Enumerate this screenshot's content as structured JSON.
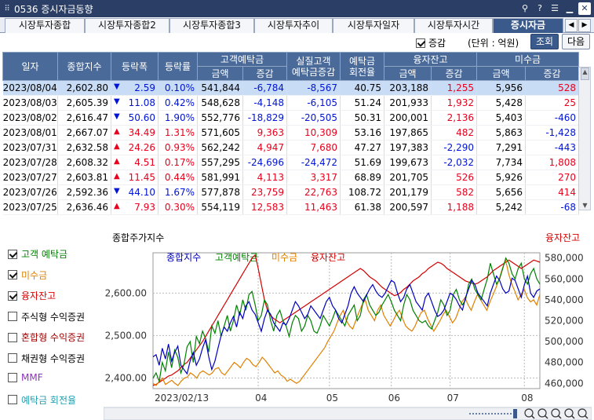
{
  "window": {
    "title": "0536 증시자금동향",
    "controls": [
      "pin-icon",
      "help-icon",
      "menu-icon",
      "minimize-icon",
      "close-icon"
    ]
  },
  "tabs": [
    {
      "label": "시장투자종합"
    },
    {
      "label": "시장투자종합2"
    },
    {
      "label": "시장투자종합3"
    },
    {
      "label": "시장투자추이"
    },
    {
      "label": "시장투자일자"
    },
    {
      "label": "시장투자시간"
    },
    {
      "label": "증시자금",
      "active": true
    }
  ],
  "toolbar": {
    "change_label": "증감",
    "change_checked": true,
    "unit_label": "(단위 : 억원)",
    "query_label": "조회",
    "next_label": "다음"
  },
  "table": {
    "headers": {
      "date": "일자",
      "kospi": "종합지수",
      "change": "등락폭",
      "rate": "등락률",
      "deposit": "고객예탁금",
      "real_deposit": "실질고객\n예탁금증감",
      "turnover": "예탁금\n회전율",
      "margin": "융자잔고",
      "unpaid": "미수금",
      "amount": "금액",
      "delta": "증감"
    },
    "rows": [
      {
        "date": "2023/08/04",
        "kospi": "2,602.80",
        "dir": "down",
        "change": "2.59",
        "rate": "0.10%",
        "dep_amt": "541,844",
        "dep_chg": "-6,784",
        "real": "-8,567",
        "turn": "40.75",
        "mar_amt": "203,188",
        "mar_chg": "1,255",
        "unp_amt": "5,956",
        "unp_chg": "528",
        "selected": true
      },
      {
        "date": "2023/08/03",
        "kospi": "2,605.39",
        "dir": "down",
        "change": "11.08",
        "rate": "0.42%",
        "dep_amt": "548,628",
        "dep_chg": "-4,148",
        "real": "-6,105",
        "turn": "51.24",
        "mar_amt": "201,933",
        "mar_chg": "1,932",
        "unp_amt": "5,428",
        "unp_chg": "25"
      },
      {
        "date": "2023/08/02",
        "kospi": "2,616.47",
        "dir": "down",
        "change": "50.60",
        "rate": "1.90%",
        "dep_amt": "552,776",
        "dep_chg": "-18,829",
        "real": "-20,505",
        "turn": "50.31",
        "mar_amt": "200,001",
        "mar_chg": "2,136",
        "unp_amt": "5,403",
        "unp_chg": "-460"
      },
      {
        "date": "2023/08/01",
        "kospi": "2,667.07",
        "dir": "up",
        "change": "34.49",
        "rate": "1.31%",
        "dep_amt": "571,605",
        "dep_chg": "9,363",
        "real": "10,309",
        "turn": "53.16",
        "mar_amt": "197,865",
        "mar_chg": "482",
        "unp_amt": "5,863",
        "unp_chg": "-1,428"
      },
      {
        "date": "2023/07/31",
        "kospi": "2,632.58",
        "dir": "up",
        "change": "24.26",
        "rate": "0.93%",
        "dep_amt": "562,242",
        "dep_chg": "4,947",
        "real": "7,680",
        "turn": "47.27",
        "mar_amt": "197,383",
        "mar_chg": "-2,290",
        "unp_amt": "7,291",
        "unp_chg": "-443"
      },
      {
        "date": "2023/07/28",
        "kospi": "2,608.32",
        "dir": "up",
        "change": "4.51",
        "rate": "0.17%",
        "dep_amt": "557,295",
        "dep_chg": "-24,696",
        "real": "-24,472",
        "turn": "51.69",
        "mar_amt": "199,673",
        "mar_chg": "-2,032",
        "unp_amt": "7,734",
        "unp_chg": "1,808"
      },
      {
        "date": "2023/07/27",
        "kospi": "2,603.81",
        "dir": "up",
        "change": "11.45",
        "rate": "0.44%",
        "dep_amt": "581,991",
        "dep_chg": "4,113",
        "real": "3,317",
        "turn": "68.89",
        "mar_amt": "201,705",
        "mar_chg": "526",
        "unp_amt": "5,926",
        "unp_chg": "270"
      },
      {
        "date": "2023/07/26",
        "kospi": "2,592.36",
        "dir": "down",
        "change": "44.10",
        "rate": "1.67%",
        "dep_amt": "577,878",
        "dep_chg": "23,759",
        "real": "22,763",
        "turn": "108.72",
        "mar_amt": "201,179",
        "mar_chg": "582",
        "unp_amt": "5,656",
        "unp_chg": "414"
      },
      {
        "date": "2023/07/25",
        "kospi": "2,636.46",
        "dir": "up",
        "change": "7.93",
        "rate": "0.30%",
        "dep_amt": "554,119",
        "dep_chg": "12,583",
        "real": "11,463",
        "turn": "61.38",
        "mar_amt": "200,597",
        "mar_chg": "1,188",
        "unp_amt": "5,242",
        "unp_chg": "-68"
      }
    ]
  },
  "legend": [
    {
      "label": "고객 예탁금",
      "checked": true,
      "color": "#008000"
    },
    {
      "label": "미수금",
      "checked": true,
      "color": "#e08000"
    },
    {
      "label": "융자잔고",
      "checked": true,
      "color": "#d40000"
    },
    {
      "label": "주식형 수익증권",
      "checked": false,
      "color": "#000000"
    },
    {
      "label": "혼합형 수익증권",
      "checked": false,
      "color": "#a00000"
    },
    {
      "label": "채권형 수익증권",
      "checked": false,
      "color": "#000000"
    },
    {
      "label": "MMF",
      "checked": false,
      "color": "#9030c0"
    },
    {
      "label": "예탁금 회전율",
      "checked": false,
      "color": "#20a0b0"
    }
  ],
  "chart_data": {
    "type": "line",
    "title": "종합주가지수",
    "right_axis_title": "융자잔고",
    "legend_text": [
      "종합지수",
      "고객예탁금",
      "미수금",
      "융자잔고"
    ],
    "series_colors": [
      "#0000c0",
      "#008000",
      "#e08000",
      "#d40000"
    ],
    "x_labels": [
      "2023/02/13",
      "04",
      "05",
      "06",
      "07",
      "08"
    ],
    "left_ticks": [
      "2,600.00",
      "2,500.00",
      "2,400.00"
    ],
    "left_range": [
      2375,
      2695
    ],
    "right_ticks": [
      "580,000",
      "560,000",
      "540,000",
      "520,000",
      "500,000",
      "480,000",
      "460,000"
    ],
    "right_range": [
      455000,
      585000
    ],
    "x_range": [
      0,
      125
    ],
    "series": [
      {
        "name": "종합지수",
        "axis": "left",
        "values": [
          2450,
          2455,
          2430,
          2470,
          2445,
          2480,
          2440,
          2460,
          2475,
          2430,
          2420,
          2410,
          2440,
          2460,
          2430,
          2445,
          2470,
          2490,
          2450,
          2420,
          2440,
          2470,
          2500,
          2520,
          2510,
          2530,
          2545,
          2520,
          2555,
          2540,
          2570,
          2580,
          2560,
          2550,
          2530,
          2510,
          2540,
          2560,
          2550,
          2530,
          2520,
          2510,
          2530,
          2525,
          2540,
          2560,
          2580,
          2570,
          2555,
          2540,
          2550,
          2570,
          2560,
          2550,
          2540,
          2560,
          2580,
          2590,
          2570,
          2560,
          2540,
          2530,
          2550,
          2570,
          2600,
          2615,
          2600,
          2590,
          2580,
          2595,
          2610,
          2620,
          2605,
          2595,
          2590,
          2600,
          2615,
          2630,
          2625,
          2600,
          2580,
          2590,
          2610,
          2620,
          2600,
          2580,
          2570,
          2560,
          2590,
          2600,
          2580,
          2560,
          2545,
          2550,
          2560,
          2580,
          2600,
          2595,
          2585,
          2570,
          2560,
          2590,
          2610,
          2630,
          2620,
          2600,
          2590,
          2580,
          2570,
          2600,
          2620,
          2640,
          2630,
          2610,
          2600,
          2605,
          2635,
          2630,
          2610,
          2590,
          2620,
          2640,
          2600,
          2590,
          2605,
          2610
        ]
      },
      {
        "name": "고객예탁금",
        "axis": "right",
        "values": [
          465000,
          470000,
          462000,
          480000,
          472000,
          490000,
          475000,
          492000,
          485000,
          470000,
          478000,
          495000,
          500000,
          480000,
          505000,
          498000,
          510000,
          503000,
          490000,
          515000,
          508000,
          520000,
          505000,
          515000,
          525000,
          510000,
          520000,
          535000,
          525000,
          540000,
          530000,
          545000,
          548000,
          535000,
          520000,
          525000,
          540000,
          535000,
          520000,
          510000,
          525000,
          530000,
          520000,
          515000,
          505000,
          518000,
          525000,
          522000,
          510000,
          515000,
          525000,
          520000,
          510000,
          508000,
          515000,
          525000,
          520000,
          515000,
          522000,
          530000,
          525000,
          520000,
          515000,
          525000,
          530000,
          535000,
          520000,
          525000,
          540000,
          545000,
          535000,
          530000,
          525000,
          528000,
          535000,
          540000,
          545000,
          538000,
          530000,
          525000,
          520000,
          535000,
          545000,
          540000,
          530000,
          525000,
          520000,
          518000,
          520000,
          515000,
          512000,
          520000,
          528000,
          540000,
          535000,
          525000,
          530000,
          545000,
          550000,
          540000,
          535000,
          540000,
          555000,
          560000,
          550000,
          545000,
          540000,
          550000,
          560000,
          575000,
          565000,
          555000,
          560000,
          570000,
          580000,
          575000,
          565000,
          560000,
          570000,
          575000,
          560000,
          555000,
          565000,
          570000,
          560000,
          555000
        ]
      },
      {
        "name": "미수금",
        "axis": "right",
        "values": [
          460000,
          458000,
          462000,
          465000,
          459000,
          461000,
          463000,
          460000,
          458000,
          462000,
          465000,
          466000,
          470000,
          468000,
          465000,
          470000,
          472000,
          470000,
          468000,
          470000,
          474000,
          475000,
          470000,
          468000,
          472000,
          476000,
          480000,
          478000,
          475000,
          480000,
          484000,
          482000,
          478000,
          476000,
          480000,
          485000,
          482000,
          478000,
          474000,
          470000,
          472000,
          468000,
          466000,
          462000,
          464000,
          462000,
          460000,
          462000,
          466000,
          470000,
          474000,
          478000,
          482000,
          486000,
          490000,
          494000,
          500000,
          505000,
          510000,
          518000,
          525000,
          530000,
          520000,
          515000,
          512000,
          520000,
          528000,
          535000,
          540000,
          530000,
          525000,
          520000,
          530000,
          535000,
          525000,
          520000,
          515000,
          520000,
          526000,
          530000,
          522000,
          515000,
          512000,
          510000,
          515000,
          522000,
          528000,
          530000,
          522000,
          516000,
          510000,
          515000,
          520000,
          526000,
          530000,
          524000,
          518000,
          522000,
          530000,
          538000,
          542000,
          535000,
          530000,
          538000,
          545000,
          540000,
          535000,
          530000,
          538000,
          545000,
          552000,
          560000,
          570000,
          578000,
          565000,
          555000,
          548000,
          540000,
          545000,
          550000,
          542000,
          538000,
          540000,
          535000,
          545000
        ]
      },
      {
        "name": "융자잔고",
        "axis": "right",
        "values": [
          458000,
          459000,
          461000,
          463000,
          465000,
          467000,
          468000,
          470000,
          472000,
          475000,
          478000,
          480000,
          484000,
          488000,
          492000,
          496000,
          500000,
          505000,
          510000,
          515000,
          520000,
          525000,
          530000,
          535000,
          540000,
          545000,
          550000,
          555000,
          560000,
          565000,
          570000,
          575000,
          580000,
          583000,
          570000,
          555000,
          540000,
          530000,
          525000,
          522000,
          520000,
          518000,
          520000,
          522000,
          524000,
          526000,
          528000,
          530000,
          532000,
          534000,
          536000,
          538000,
          540000,
          542000,
          544000,
          546000,
          548000,
          550000,
          552000,
          554000,
          556000,
          558000,
          560000,
          562000,
          564000,
          566000,
          568000,
          570000,
          568000,
          565000,
          562000,
          560000,
          558000,
          555000,
          552000,
          550000,
          548000,
          546000,
          544000,
          545000,
          547000,
          550000,
          552000,
          555000,
          558000,
          560000,
          562000,
          565000,
          567000,
          570000,
          572000,
          574000,
          576000,
          575000,
          573000,
          570000,
          568000,
          566000,
          564000,
          562000,
          560000,
          558000,
          557000,
          556000,
          555000,
          556000,
          558000,
          560000,
          562000,
          565000,
          568000,
          570000,
          572000,
          574000,
          576000,
          578000,
          576000,
          574000,
          572000,
          570000,
          572000,
          574000,
          576000,
          578000,
          577000,
          576000
        ]
      }
    ]
  }
}
